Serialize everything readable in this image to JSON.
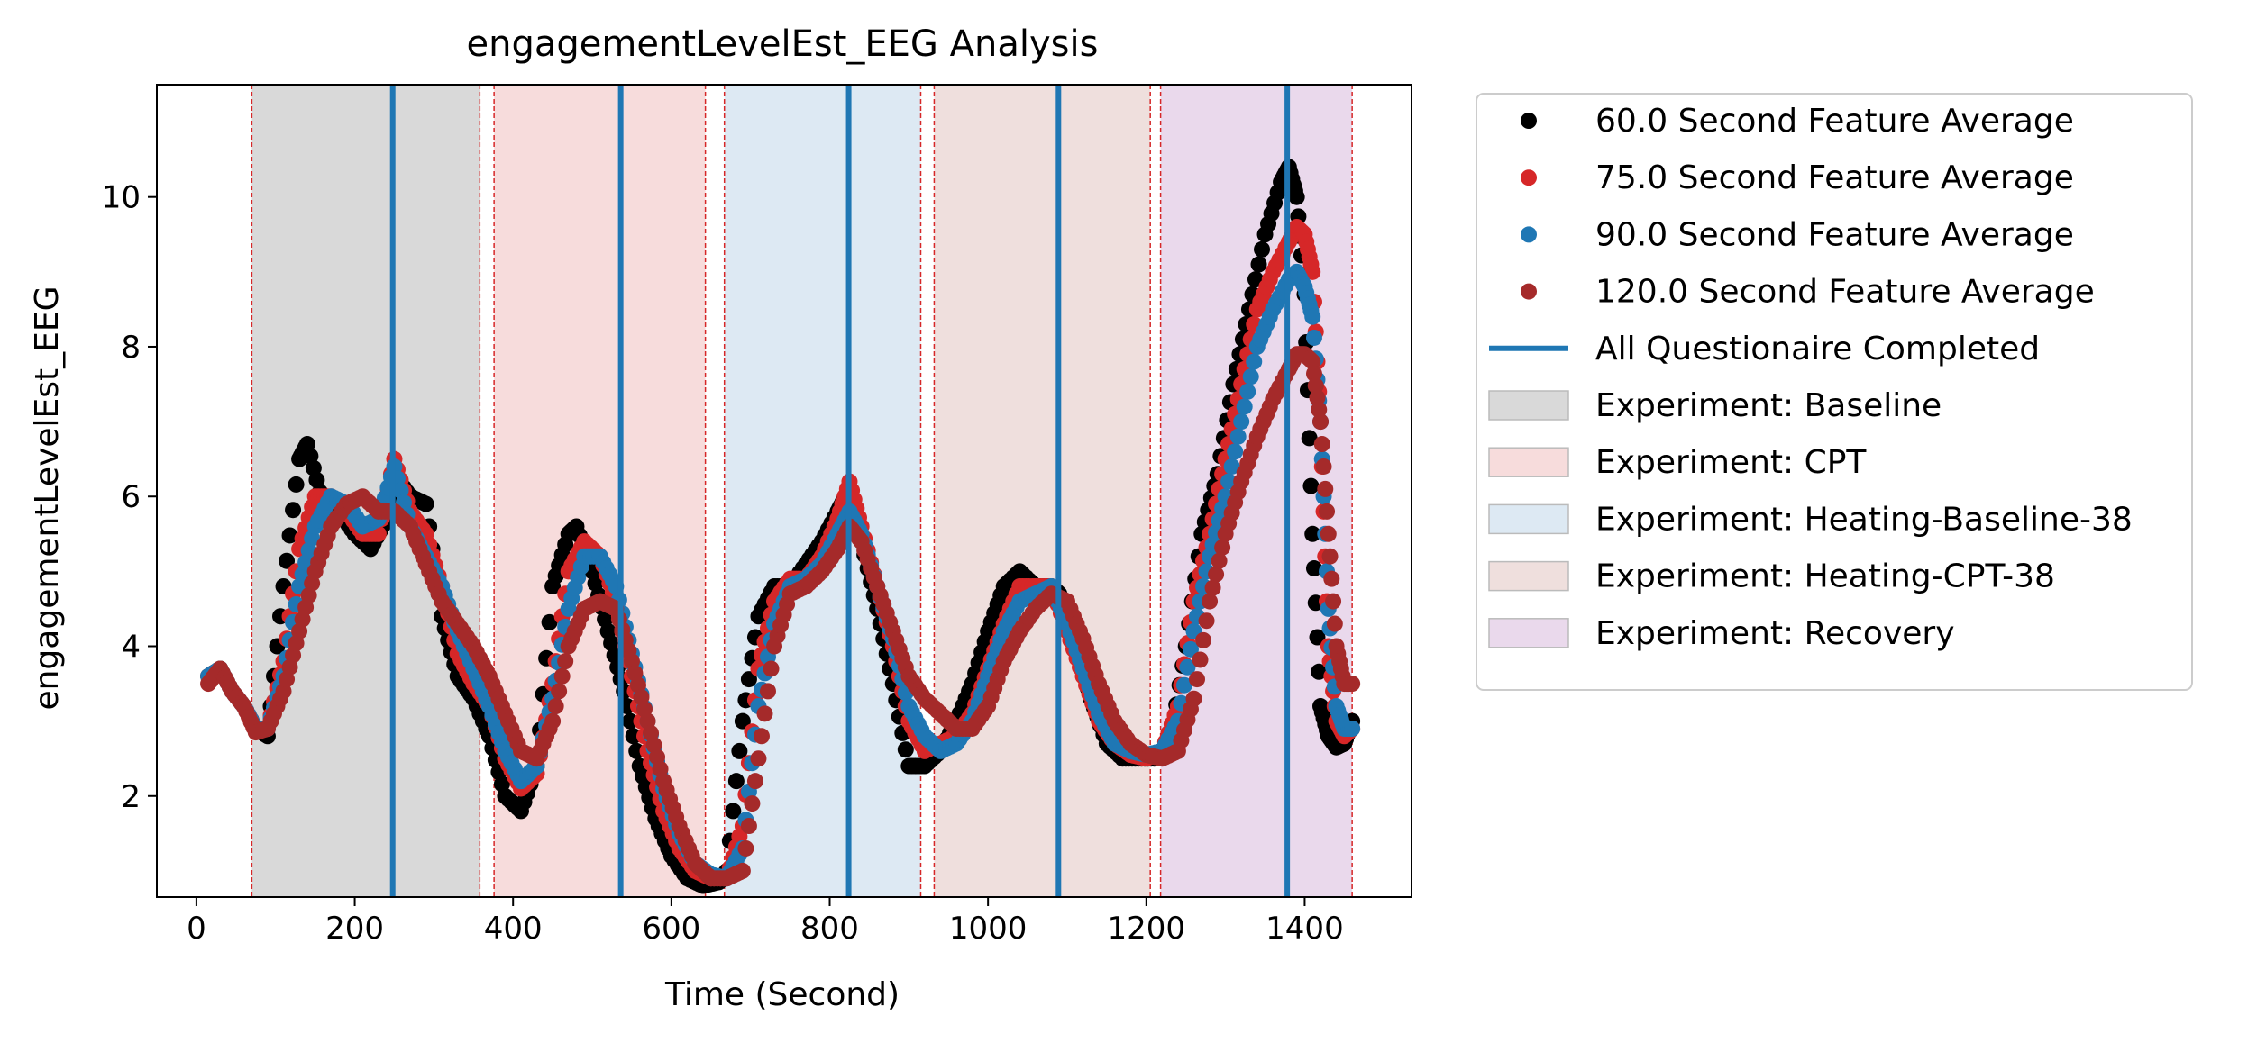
{
  "chart_data": {
    "type": "scatter",
    "title": "engagementLevelEst_EEG Analysis",
    "xlabel": "Time (Second)",
    "ylabel": "engagementLevelEst_EEG",
    "xlim": [
      -50,
      1535
    ],
    "ylim": [
      0.65,
      11.5
    ],
    "xticks": [
      0,
      200,
      400,
      600,
      800,
      1000,
      1200,
      1400
    ],
    "yticks": [
      2,
      4,
      6,
      8,
      10
    ],
    "grid": false,
    "legend_position": "outside-right-top",
    "experiments": [
      {
        "label": "Experiment: Baseline",
        "start": 70,
        "end": 358,
        "color": "#d9d9d9"
      },
      {
        "label": "Experiment: CPT",
        "start": 376,
        "end": 643,
        "color": "#f7dcdc"
      },
      {
        "label": "Experiment: Heating-Baseline-38",
        "start": 667,
        "end": 915,
        "color": "#dde9f3"
      },
      {
        "label": "Experiment: Heating-CPT-38",
        "start": 932,
        "end": 1205,
        "color": "#efdfdd"
      },
      {
        "label": "Experiment: Recovery",
        "start": 1218,
        "end": 1460,
        "color": "#ead9ec"
      }
    ],
    "questionnaire": {
      "label": "All Questionaire Completed",
      "color": "#1f77b4",
      "x": [
        248,
        536,
        824,
        1089,
        1378
      ]
    },
    "series": [
      {
        "name": "60.0 Second Feature Average",
        "color": "#000000",
        "x": [
          15,
          30,
          45,
          60,
          75,
          90,
          110,
          130,
          140,
          160,
          180,
          200,
          220,
          240,
          250,
          270,
          290,
          310,
          330,
          350,
          370,
          390,
          410,
          430,
          450,
          470,
          480,
          500,
          520,
          540,
          560,
          580,
          600,
          620,
          640,
          660,
          670,
          690,
          710,
          730,
          750,
          770,
          790,
          810,
          820,
          840,
          860,
          880,
          900,
          920,
          940,
          960,
          980,
          1000,
          1020,
          1040,
          1060,
          1080,
          1090,
          1110,
          1130,
          1150,
          1170,
          1190,
          1210,
          1230,
          1250,
          1270,
          1290,
          1310,
          1330,
          1350,
          1370,
          1380,
          1390,
          1400,
          1410,
          1420,
          1430,
          1440,
          1450,
          1460
        ],
        "y": [
          3.6,
          3.7,
          3.4,
          3.2,
          2.9,
          2.8,
          4.8,
          6.5,
          6.7,
          5.9,
          5.8,
          5.5,
          5.3,
          5.7,
          6.3,
          6.0,
          5.9,
          4.4,
          3.6,
          3.3,
          2.8,
          2.0,
          1.8,
          2.4,
          4.8,
          5.5,
          5.6,
          5.0,
          4.2,
          3.4,
          2.4,
          1.7,
          1.2,
          0.9,
          0.8,
          0.85,
          1.0,
          3.0,
          4.4,
          4.8,
          4.8,
          5.1,
          5.4,
          5.8,
          6.0,
          5.4,
          4.5,
          3.5,
          2.4,
          2.4,
          2.6,
          3.0,
          3.5,
          4.2,
          4.8,
          5.0,
          4.8,
          4.8,
          4.7,
          4.0,
          3.3,
          2.7,
          2.5,
          2.5,
          2.5,
          2.7,
          4.0,
          5.5,
          6.3,
          7.5,
          8.5,
          9.5,
          10.2,
          10.4,
          10.0,
          8.7,
          5.5,
          3.2,
          2.8,
          2.65,
          2.7,
          3.0
        ]
      },
      {
        "name": "75.0 Second Feature Average",
        "color": "#d62728",
        "x": [
          15,
          30,
          45,
          60,
          75,
          90,
          110,
          130,
          150,
          170,
          190,
          210,
          230,
          250,
          270,
          290,
          310,
          330,
          350,
          370,
          390,
          410,
          430,
          450,
          470,
          490,
          510,
          530,
          550,
          570,
          590,
          610,
          630,
          650,
          670,
          690,
          710,
          730,
          750,
          770,
          790,
          810,
          825,
          840,
          860,
          880,
          900,
          920,
          940,
          960,
          980,
          1000,
          1020,
          1040,
          1060,
          1080,
          1100,
          1120,
          1140,
          1160,
          1180,
          1200,
          1220,
          1240,
          1260,
          1280,
          1300,
          1320,
          1340,
          1360,
          1380,
          1390,
          1400,
          1410,
          1420,
          1430,
          1440,
          1450,
          1460
        ],
        "y": [
          3.6,
          3.7,
          3.4,
          3.2,
          2.9,
          2.9,
          3.8,
          5.3,
          6.0,
          6.0,
          5.8,
          5.5,
          5.5,
          6.5,
          5.8,
          5.5,
          4.8,
          3.9,
          3.5,
          3.2,
          2.5,
          2.1,
          2.3,
          3.5,
          5.0,
          5.4,
          5.2,
          4.6,
          3.6,
          2.6,
          1.8,
          1.3,
          1.0,
          0.9,
          0.9,
          1.6,
          3.7,
          4.6,
          4.9,
          4.9,
          5.2,
          5.7,
          6.2,
          5.6,
          4.8,
          4.0,
          3.0,
          2.6,
          2.7,
          2.8,
          3.1,
          3.7,
          4.3,
          4.8,
          4.8,
          4.8,
          4.2,
          3.6,
          3.0,
          2.7,
          2.55,
          2.5,
          2.6,
          3.2,
          4.6,
          5.5,
          6.5,
          7.5,
          8.5,
          9.0,
          9.4,
          9.6,
          9.5,
          9.0,
          7.0,
          4.0,
          3.0,
          2.8,
          2.9
        ]
      },
      {
        "name": "90.0 Second Feature Average",
        "color": "#1f77b4",
        "x": [
          15,
          30,
          45,
          60,
          75,
          90,
          110,
          130,
          150,
          170,
          190,
          210,
          230,
          250,
          270,
          290,
          310,
          330,
          350,
          370,
          390,
          410,
          430,
          450,
          470,
          490,
          510,
          530,
          550,
          570,
          590,
          610,
          630,
          650,
          670,
          690,
          710,
          730,
          750,
          770,
          790,
          810,
          825,
          840,
          860,
          880,
          900,
          920,
          940,
          960,
          980,
          1000,
          1020,
          1040,
          1060,
          1080,
          1100,
          1120,
          1140,
          1160,
          1180,
          1200,
          1220,
          1240,
          1260,
          1280,
          1300,
          1320,
          1340,
          1360,
          1380,
          1390,
          1400,
          1410,
          1420,
          1430,
          1440,
          1450,
          1460
        ],
        "y": [
          3.6,
          3.7,
          3.4,
          3.2,
          2.9,
          2.9,
          3.6,
          4.8,
          5.6,
          6.0,
          5.9,
          5.6,
          5.7,
          6.4,
          5.6,
          5.2,
          4.8,
          4.2,
          3.7,
          3.2,
          2.6,
          2.2,
          2.4,
          3.3,
          4.5,
          5.2,
          5.2,
          4.8,
          3.9,
          3.0,
          2.1,
          1.5,
          1.1,
          0.95,
          0.9,
          1.3,
          3.2,
          4.3,
          4.8,
          4.9,
          5.1,
          5.5,
          5.8,
          5.5,
          4.8,
          4.1,
          3.2,
          2.8,
          2.6,
          2.7,
          3.0,
          3.6,
          4.2,
          4.6,
          4.7,
          4.8,
          4.3,
          3.7,
          3.1,
          2.7,
          2.6,
          2.55,
          2.6,
          3.0,
          4.2,
          5.2,
          6.0,
          7.0,
          8.0,
          8.5,
          8.9,
          9.0,
          8.8,
          8.4,
          7.0,
          4.5,
          3.2,
          2.9,
          2.9
        ]
      },
      {
        "name": "120.0 Second Feature Average",
        "color": "#a52a2a",
        "x": [
          15,
          30,
          45,
          60,
          75,
          90,
          110,
          130,
          150,
          170,
          190,
          210,
          230,
          250,
          270,
          290,
          310,
          330,
          350,
          370,
          390,
          410,
          430,
          450,
          470,
          490,
          510,
          530,
          550,
          570,
          590,
          610,
          630,
          650,
          670,
          690,
          710,
          730,
          750,
          770,
          790,
          810,
          825,
          840,
          860,
          880,
          900,
          920,
          940,
          960,
          980,
          1000,
          1020,
          1040,
          1060,
          1080,
          1100,
          1120,
          1140,
          1160,
          1180,
          1200,
          1220,
          1240,
          1260,
          1280,
          1300,
          1320,
          1340,
          1360,
          1380,
          1390,
          1400,
          1410,
          1420,
          1430,
          1440,
          1450,
          1460
        ],
        "y": [
          3.5,
          3.7,
          3.4,
          3.2,
          2.85,
          2.9,
          3.4,
          4.2,
          5.0,
          5.6,
          5.9,
          6.0,
          5.8,
          5.8,
          5.6,
          5.1,
          4.6,
          4.3,
          4.0,
          3.6,
          3.1,
          2.6,
          2.5,
          3.0,
          4.0,
          4.5,
          4.6,
          4.5,
          3.8,
          3.0,
          2.2,
          1.6,
          1.1,
          0.9,
          0.9,
          1.0,
          2.5,
          4.0,
          4.7,
          4.8,
          5.0,
          5.3,
          5.6,
          5.4,
          4.8,
          4.2,
          3.6,
          3.3,
          3.1,
          2.9,
          2.9,
          3.2,
          3.8,
          4.2,
          4.5,
          4.7,
          4.6,
          4.1,
          3.5,
          3.0,
          2.7,
          2.55,
          2.5,
          2.6,
          3.3,
          4.6,
          5.5,
          6.2,
          6.8,
          7.3,
          7.7,
          7.9,
          7.9,
          7.8,
          7.0,
          5.5,
          4.0,
          3.5,
          3.5
        ]
      }
    ]
  }
}
